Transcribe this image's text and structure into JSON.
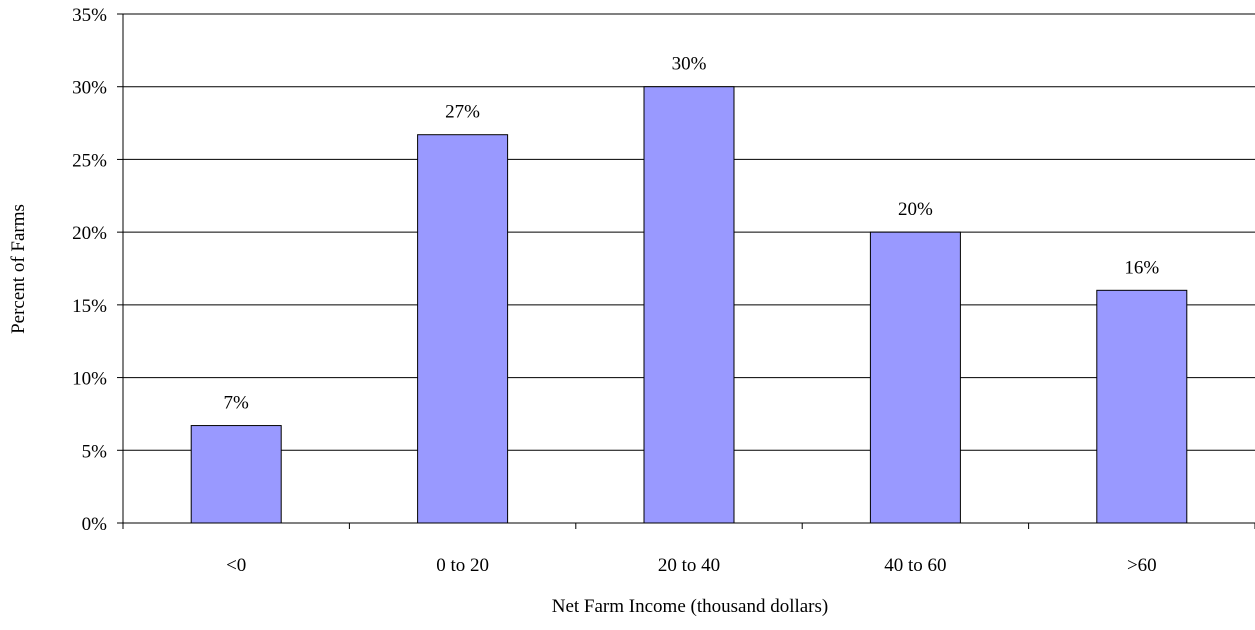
{
  "chart_data": {
    "type": "bar",
    "title": "",
    "xlabel": "Net Farm Income (thousand dollars)",
    "ylabel": "Percent of Farms",
    "categories": [
      "<0",
      "0 to 20",
      "20 to 40",
      "40 to 60",
      ">60"
    ],
    "values": [
      6.7,
      26.7,
      30,
      20,
      16
    ],
    "data_labels": [
      "7%",
      "27%",
      "30%",
      "20%",
      "16%"
    ],
    "ylim": [
      0,
      35
    ],
    "yticks": [
      0,
      5,
      10,
      15,
      20,
      25,
      30,
      35
    ],
    "ytick_labels": [
      "0%",
      "5%",
      "10%",
      "15%",
      "20%",
      "25%",
      "30%",
      "35%"
    ],
    "grid": true,
    "legend": "none",
    "colors": {
      "bar_fill": "#9999ff",
      "bar_stroke": "#000000",
      "grid": "#000000",
      "axis": "#000000"
    }
  }
}
